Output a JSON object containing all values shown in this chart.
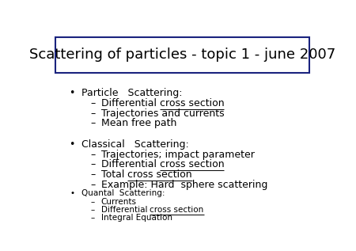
{
  "title": "Scattering of particles - topic 1 - june 2007",
  "title_fontsize": 13,
  "background_color": "#ffffff",
  "box_color": "#1a237e",
  "sections": [
    {
      "bullet": "•",
      "header": "Particle   Scattering:",
      "header_size": 9,
      "items": [
        {
          "text": "Differential ",
          "underline": "cross section",
          "plain_after": ""
        },
        {
          "text": "Trajectories and currents",
          "underline": "",
          "plain_after": ""
        },
        {
          "text": "Mean free path",
          "underline": "",
          "plain_after": ""
        }
      ],
      "item_size": 9
    },
    {
      "bullet": "•",
      "header": "Classical   Scattering:",
      "header_size": 9,
      "items": [
        {
          "text": "Trajectories; impact parameter",
          "underline": "",
          "plain_after": ""
        },
        {
          "text": "Differential ",
          "underline": "cross section",
          "plain_after": ""
        },
        {
          "text": "Total ",
          "underline": "cross section",
          "plain_after": ""
        },
        {
          "text": "Example: Hard  sphere scattering",
          "underline": "",
          "plain_after": ""
        }
      ],
      "item_size": 9
    },
    {
      "bullet": "•",
      "header": "Quantal  Scattering:",
      "header_size": 7.5,
      "items": [
        {
          "text": "Currents",
          "underline": "",
          "plain_after": ""
        },
        {
          "text": "Differential ",
          "underline": "cross section",
          "plain_after": ""
        },
        {
          "text": "Integral Equation",
          "underline": "",
          "plain_after": ""
        }
      ],
      "item_size": 7.5
    }
  ],
  "figsize": [
    4.5,
    3.17
  ],
  "dpi": 100
}
